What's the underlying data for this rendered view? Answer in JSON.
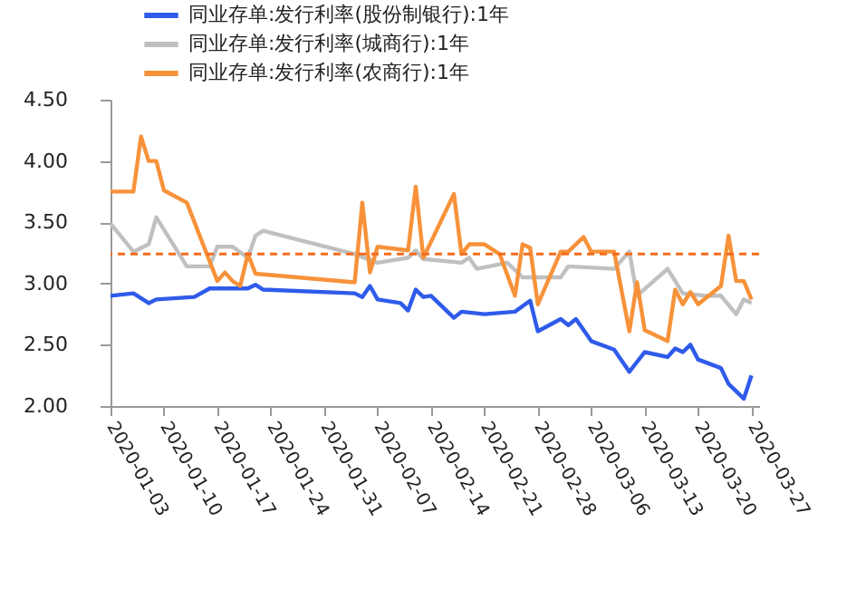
{
  "chart_data": {
    "type": "line",
    "legend": "top",
    "grid": false,
    "marker": "none",
    "xlim": [
      "2020-01-03",
      "2020-03-28"
    ],
    "xticks": [
      "2020-01-03",
      "2020-01-10",
      "2020-01-17",
      "2020-01-24",
      "2020-01-31",
      "2020-02-07",
      "2020-02-14",
      "2020-02-21",
      "2020-02-28",
      "2020-03-06",
      "2020-03-13",
      "2020-03-20",
      "2020-03-27"
    ],
    "ylim": [
      2,
      4.5
    ],
    "yticks": [
      {
        "value": 2,
        "label": "2.00"
      },
      {
        "value": 2.5,
        "label": "2.50"
      },
      {
        "value": 3,
        "label": "3.00"
      },
      {
        "value": 3.5,
        "label": "3.50"
      },
      {
        "value": 4,
        "label": "4.00"
      },
      {
        "value": 4.5,
        "label": "4.50"
      }
    ],
    "series": [
      {
        "name": "同业存单:发行利率(股份制银行):1年",
        "color": "#2f5bea",
        "x": [
          "2020-01-03",
          "2020-01-06",
          "2020-01-08",
          "2020-01-09",
          "2020-01-14",
          "2020-01-16",
          "2020-01-21",
          "2020-01-22",
          "2020-01-23",
          "2020-02-04",
          "2020-02-05",
          "2020-02-06",
          "2020-02-07",
          "2020-02-10",
          "2020-02-11",
          "2020-02-12",
          "2020-02-13",
          "2020-02-14",
          "2020-02-17",
          "2020-02-18",
          "2020-02-21",
          "2020-02-25",
          "2020-02-27",
          "2020-02-28",
          "2020-03-02",
          "2020-03-03",
          "2020-03-04",
          "2020-03-06",
          "2020-03-09",
          "2020-03-11",
          "2020-03-13",
          "2020-03-16",
          "2020-03-17",
          "2020-03-18",
          "2020-03-19",
          "2020-03-20",
          "2020-03-23",
          "2020-03-24",
          "2020-03-26",
          "2020-03-27"
        ],
        "values": [
          2.9,
          2.92,
          2.84,
          2.87,
          2.89,
          2.96,
          2.96,
          2.99,
          2.95,
          2.92,
          2.89,
          2.98,
          2.87,
          2.84,
          2.78,
          2.95,
          2.89,
          2.9,
          2.72,
          2.77,
          2.75,
          2.77,
          2.86,
          2.61,
          2.71,
          2.66,
          2.71,
          2.53,
          2.46,
          2.28,
          2.44,
          2.4,
          2.47,
          2.44,
          2.5,
          2.38,
          2.31,
          2.18,
          2.06,
          2.25
        ]
      },
      {
        "name": "同业存单:发行利率(城商行):1年",
        "color": "#c0c0c0",
        "x": [
          "2020-01-03",
          "2020-01-06",
          "2020-01-08",
          "2020-01-09",
          "2020-01-13",
          "2020-01-16",
          "2020-01-17",
          "2020-01-19",
          "2020-01-21",
          "2020-01-22",
          "2020-01-23",
          "2020-02-04",
          "2020-02-07",
          "2020-02-11",
          "2020-02-12",
          "2020-02-13",
          "2020-02-18",
          "2020-02-19",
          "2020-02-20",
          "2020-02-24",
          "2020-02-26",
          "2020-03-02",
          "2020-03-03",
          "2020-03-09",
          "2020-03-11",
          "2020-03-12",
          "2020-03-16",
          "2020-03-18",
          "2020-03-21",
          "2020-03-23",
          "2020-03-25",
          "2020-03-26",
          "2020-03-27"
        ],
        "values": [
          3.49,
          3.26,
          3.32,
          3.54,
          3.14,
          3.14,
          3.3,
          3.3,
          3.21,
          3.39,
          3.43,
          3.24,
          3.17,
          3.21,
          3.27,
          3.2,
          3.17,
          3.21,
          3.12,
          3.17,
          3.05,
          3.05,
          3.14,
          3.12,
          3.26,
          2.9,
          3.12,
          2.92,
          2.9,
          2.9,
          2.75,
          2.87,
          2.84
        ]
      },
      {
        "name": "同业存单:发行利率(农商行):1年",
        "color": "#f7923a",
        "x": [
          "2020-01-03",
          "2020-01-06",
          "2020-01-07",
          "2020-01-08",
          "2020-01-09",
          "2020-01-10",
          "2020-01-13",
          "2020-01-17",
          "2020-01-18",
          "2020-01-19",
          "2020-01-20",
          "2020-01-21",
          "2020-01-22",
          "2020-02-04",
          "2020-02-05",
          "2020-02-06",
          "2020-02-07",
          "2020-02-11",
          "2020-02-12",
          "2020-02-13",
          "2020-02-17",
          "2020-02-18",
          "2020-02-19",
          "2020-02-21",
          "2020-02-23",
          "2020-02-25",
          "2020-02-26",
          "2020-02-27",
          "2020-02-28",
          "2020-03-02",
          "2020-03-03",
          "2020-03-05",
          "2020-03-06",
          "2020-03-09",
          "2020-03-11",
          "2020-03-12",
          "2020-03-13",
          "2020-03-16",
          "2020-03-17",
          "2020-03-18",
          "2020-03-19",
          "2020-03-20",
          "2020-03-23",
          "2020-03-24",
          "2020-03-25",
          "2020-03-26",
          "2020-03-27"
        ],
        "values": [
          3.75,
          3.75,
          4.2,
          4.0,
          4.0,
          3.76,
          3.66,
          3.02,
          3.09,
          3.02,
          2.98,
          3.24,
          3.08,
          3.01,
          3.66,
          3.09,
          3.3,
          3.27,
          3.79,
          3.21,
          3.73,
          3.24,
          3.32,
          3.32,
          3.24,
          2.9,
          3.32,
          3.29,
          2.83,
          3.26,
          3.26,
          3.38,
          3.26,
          3.26,
          2.61,
          3.01,
          2.62,
          2.53,
          2.95,
          2.83,
          2.93,
          2.83,
          2.98,
          3.39,
          3.02,
          3.02,
          2.87
        ]
      }
    ],
    "ref_lines": [
      {
        "axis": "y",
        "value": 3.24,
        "color": "#f26b1d",
        "line_style": "dashed"
      }
    ]
  }
}
